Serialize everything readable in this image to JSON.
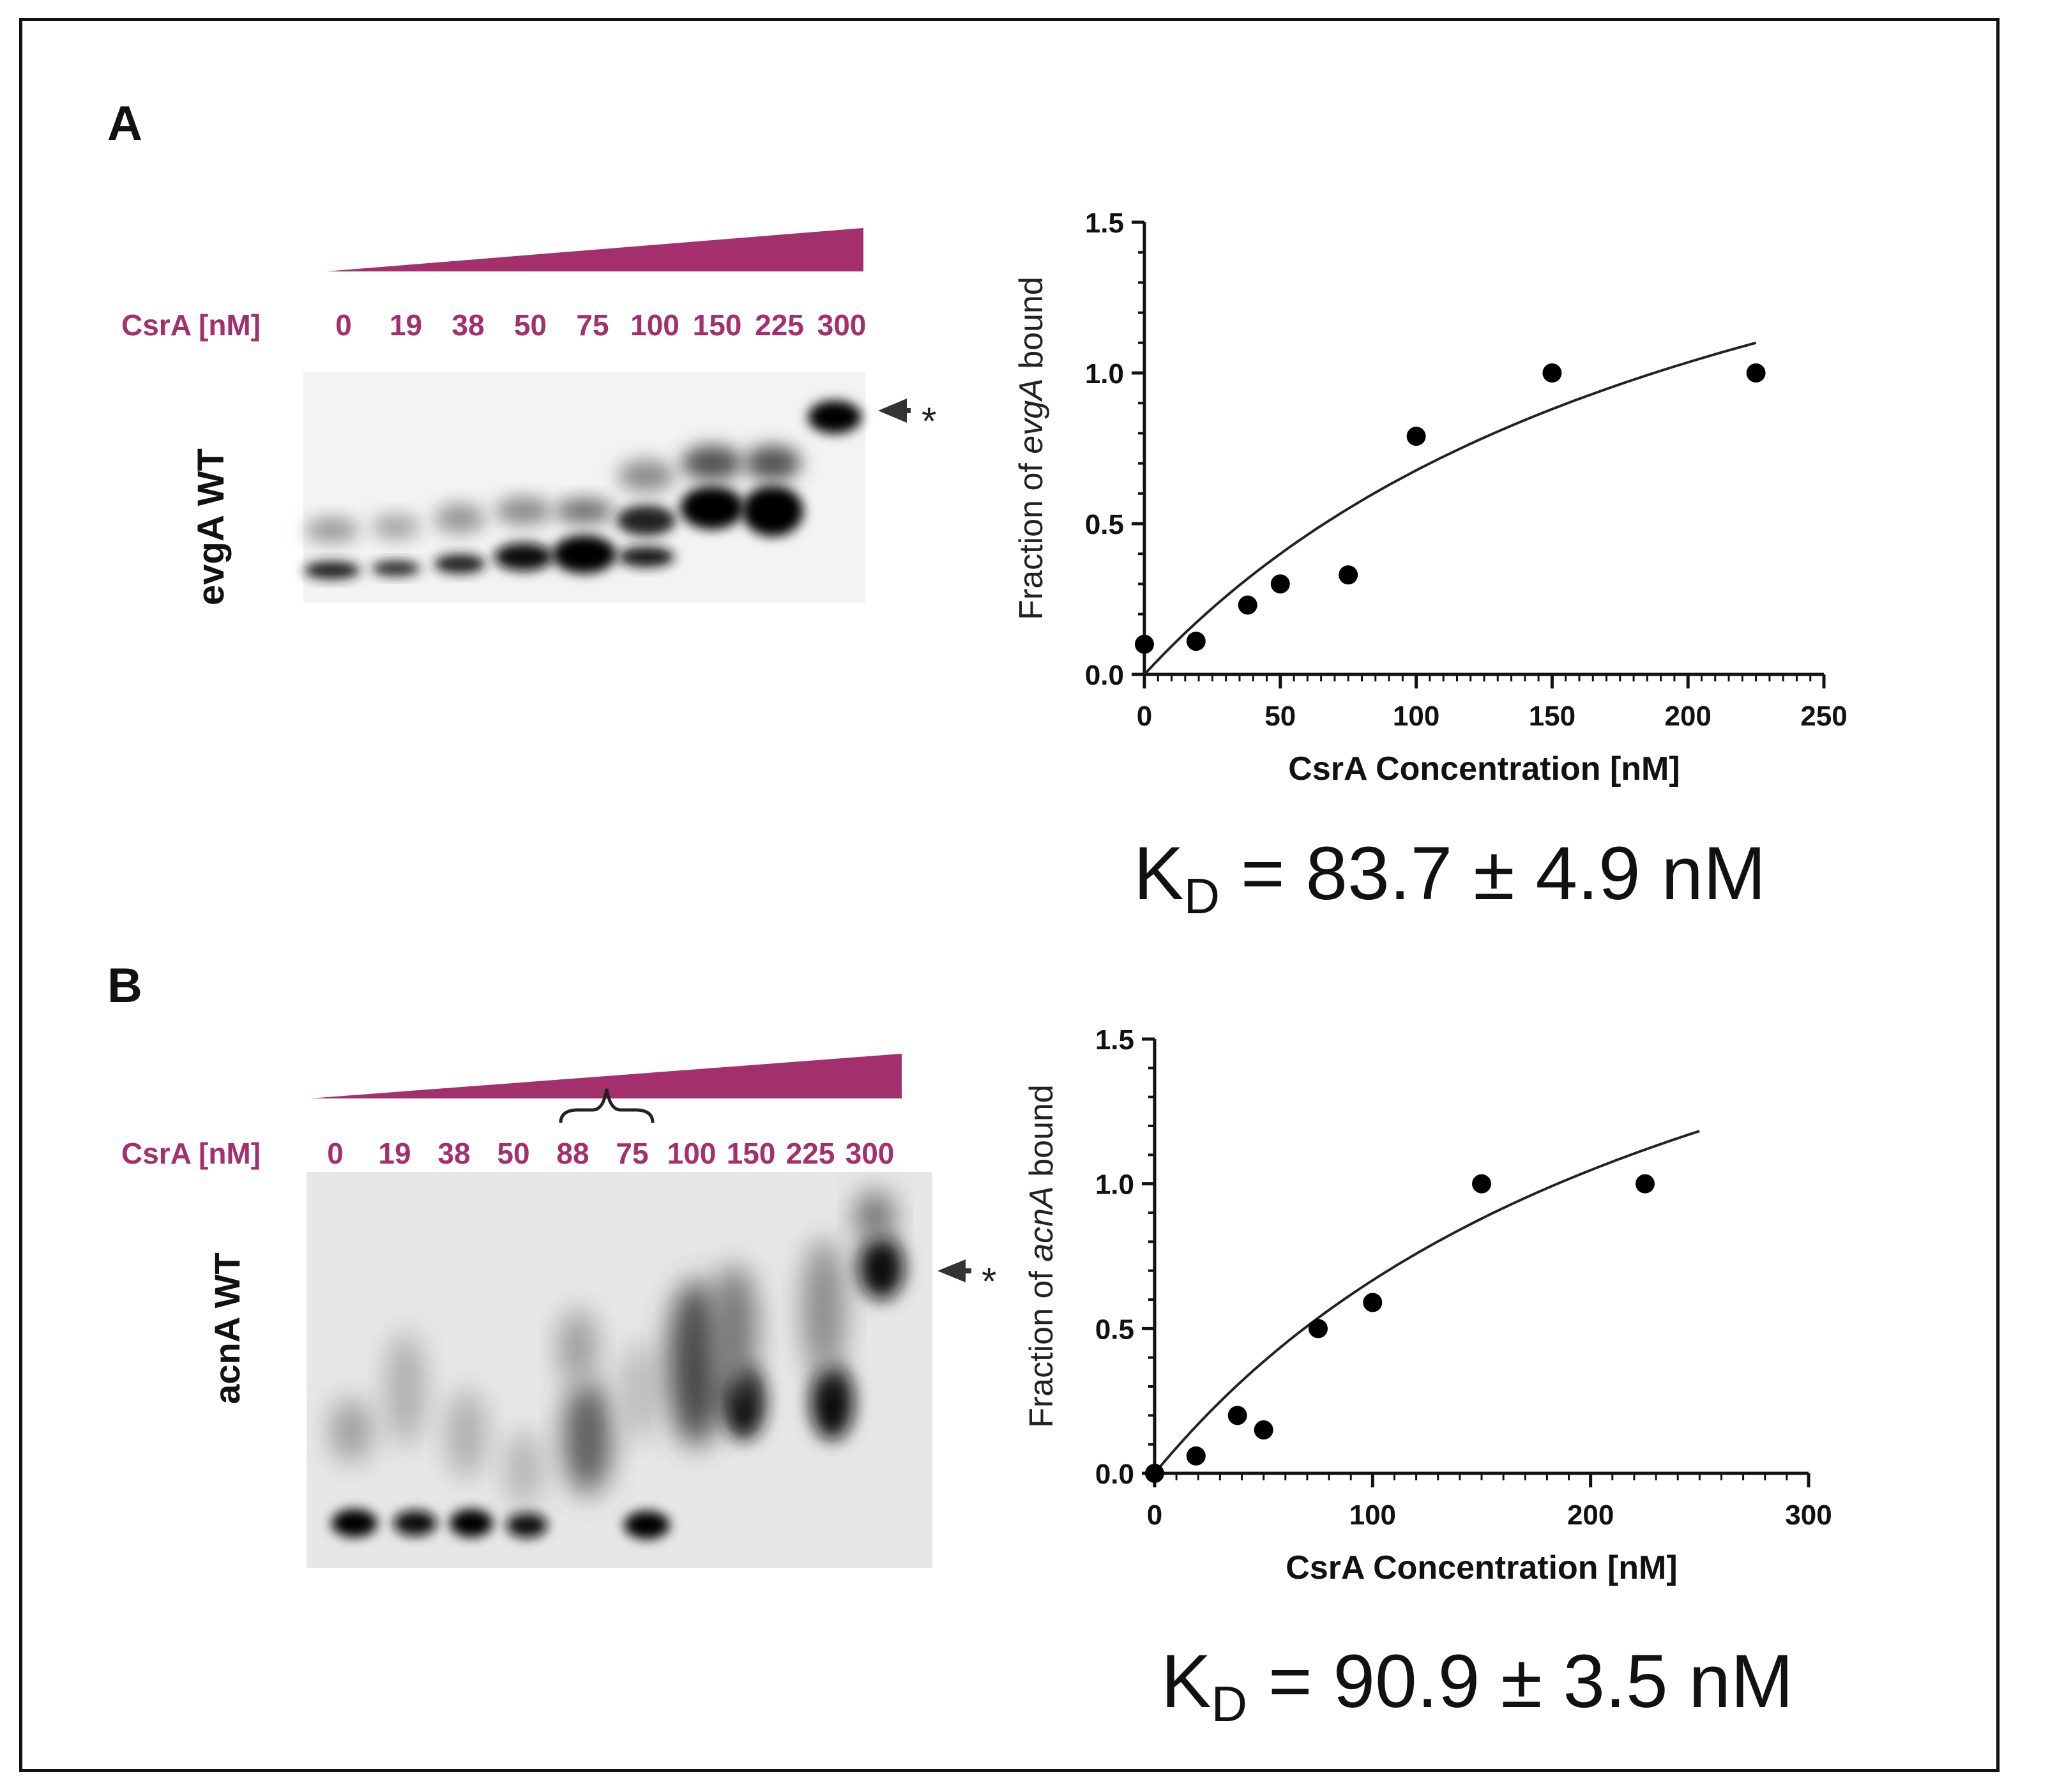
{
  "panels": [
    {
      "id": "A",
      "letter": "A",
      "gel": {
        "conc_label": "CsrA [nM]",
        "lanes": [
          "0",
          "19",
          "38",
          "50",
          "75",
          "100",
          "150",
          "225",
          "300"
        ],
        "rna_label": "evgA WT",
        "arrow_symbol": "*"
      },
      "kd": {
        "k": "K",
        "sub": "D",
        "rest": " = 83.7 ± 4.9 nM"
      }
    },
    {
      "id": "B",
      "letter": "B",
      "gel": {
        "conc_label": "CsrA [nM]",
        "lanes": [
          "0",
          "19",
          "38",
          "50",
          "88",
          "75",
          "100",
          "150",
          "225",
          "300"
        ],
        "rna_label": "acnA WT",
        "arrow_symbol": "*"
      },
      "kd": {
        "k": "K",
        "sub": "D",
        "rest": " = 90.9 ± 3.5 nM"
      }
    }
  ],
  "chart_data": [
    {
      "type": "scatter",
      "title": "",
      "xlabel": "CsrA Concentration [nM]",
      "ylabel_prefix": "Fraction of ",
      "ylabel_gene": "evgA",
      "ylabel_suffix": " bound",
      "xlim": [
        0,
        250
      ],
      "ylim": [
        0,
        1.5
      ],
      "xticks": [
        0,
        50,
        100,
        150,
        200,
        250
      ],
      "yticks": [
        "0.0",
        "0.5",
        "1.0",
        "1.5"
      ],
      "points": [
        {
          "x": 0,
          "y": 0.1
        },
        {
          "x": 19,
          "y": 0.11
        },
        {
          "x": 38,
          "y": 0.23
        },
        {
          "x": 50,
          "y": 0.3
        },
        {
          "x": 75,
          "y": 0.33
        },
        {
          "x": 100,
          "y": 0.79
        },
        {
          "x": 150,
          "y": 1.0
        },
        {
          "x": 225,
          "y": 1.0
        }
      ],
      "fit": {
        "model": "hyperbolic",
        "Bmax": 2.2,
        "Kd": 225,
        "x_end": 225
      }
    },
    {
      "type": "scatter",
      "title": "",
      "xlabel": "CsrA Concentration [nM]",
      "ylabel_prefix": "Fraction of ",
      "ylabel_gene": "acnA",
      "ylabel_suffix": " bound",
      "xlim": [
        0,
        300
      ],
      "ylim": [
        0,
        1.5
      ],
      "xticks": [
        0,
        100,
        200,
        300
      ],
      "yticks": [
        "0.0",
        "0.5",
        "1.0",
        "1.5"
      ],
      "points": [
        {
          "x": 0,
          "y": 0.0
        },
        {
          "x": 19,
          "y": 0.06
        },
        {
          "x": 38,
          "y": 0.2
        },
        {
          "x": 50,
          "y": 0.15
        },
        {
          "x": 75,
          "y": 0.5
        },
        {
          "x": 100,
          "y": 0.59
        },
        {
          "x": 150,
          "y": 1.0
        },
        {
          "x": 225,
          "y": 1.0
        }
      ],
      "fit": {
        "model": "hyperbolic",
        "Bmax": 2.44,
        "Kd": 266,
        "x_end": 250
      }
    }
  ]
}
